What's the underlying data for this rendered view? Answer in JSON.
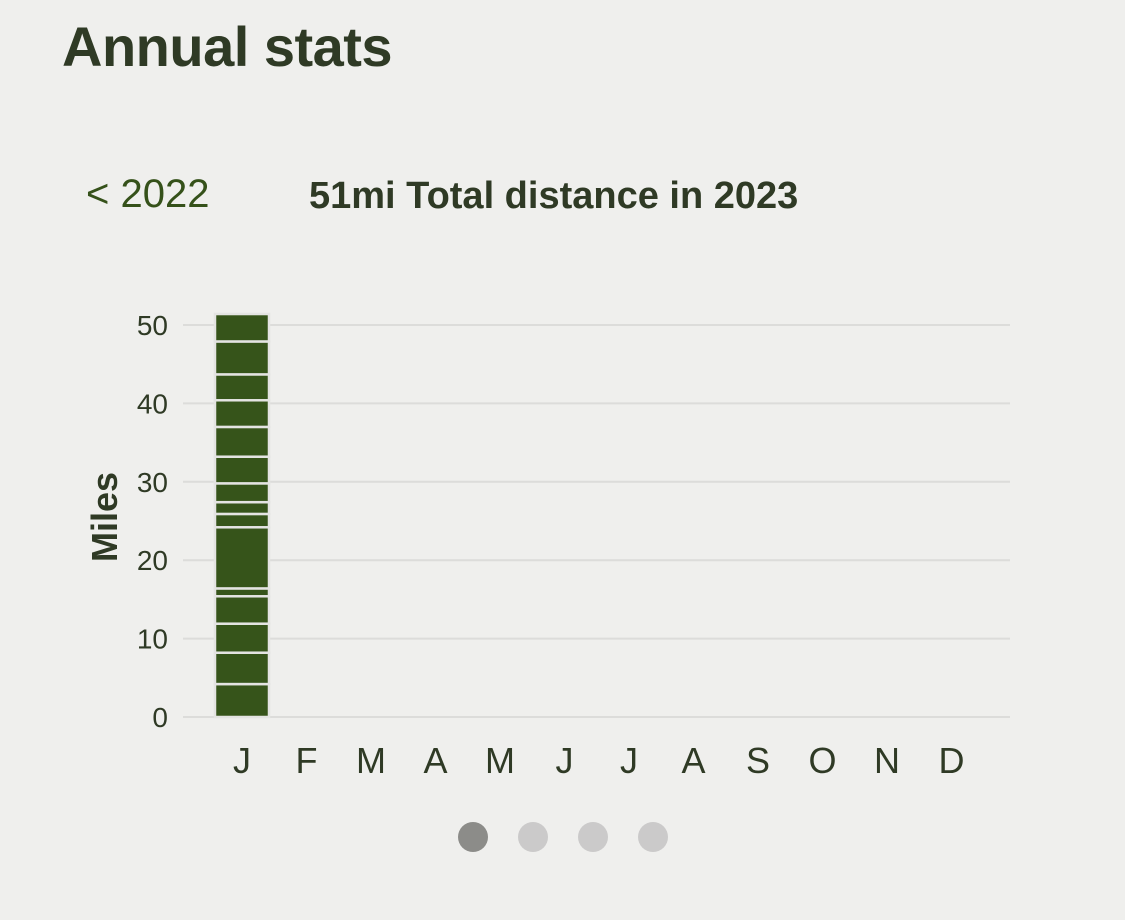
{
  "header": {
    "title": "Annual stats"
  },
  "nav": {
    "prev_year_label": "< 2022"
  },
  "chart_data": {
    "type": "bar",
    "title": "51mi Total distance in 2023",
    "xlabel": "",
    "ylabel": "Miles",
    "categories": [
      "J",
      "F",
      "M",
      "A",
      "M",
      "J",
      "J",
      "A",
      "S",
      "O",
      "N",
      "D"
    ],
    "values": [
      51,
      0,
      0,
      0,
      0,
      0,
      0,
      0,
      0,
      0,
      0,
      0
    ],
    "jan_segments": [
      4.2,
      4.0,
      3.7,
      3.5,
      1.0,
      7.8,
      1.7,
      1.5,
      2.4,
      3.4,
      3.8,
      3.4,
      3.3,
      4.2,
      3.5
    ],
    "ylim": [
      0,
      50
    ],
    "yticks": [
      0,
      10,
      20,
      30,
      40,
      50
    ],
    "grid": true,
    "bar_color": "#36541a",
    "grid_color": "#dcdcda"
  },
  "pager": {
    "count": 4,
    "active": 0
  }
}
